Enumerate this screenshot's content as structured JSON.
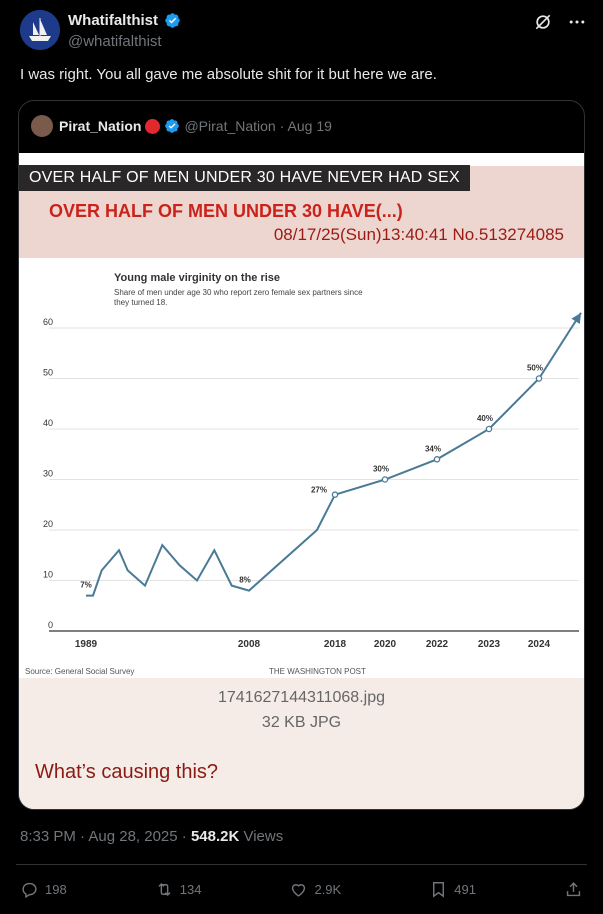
{
  "author": {
    "display_name": "Whatifalthist",
    "handle": "@whatifalthist"
  },
  "tweet_text": "I was right. You all gave me absolute shit for it but here we are.",
  "quote": {
    "display_name": "Pirat_Nation",
    "handle": "@Pirat_Nation",
    "date": "· Aug 19",
    "image": {
      "overlay_banner": "OVER HALF OF MEN UNDER 30 HAVE NEVER HAD SEX",
      "red_title": "OVER HALF OF MEN UNDER 30 HAVE(...)",
      "datetime": "08/17/25(Sun)13:40:41 No.513274085",
      "filename": "1741627144311068.jpg",
      "filesize": "32 KB JPG",
      "caption": "What’s causing this?"
    }
  },
  "chart_data": {
    "type": "line",
    "title": "Young male virginity on the rise",
    "subtitle": "Share of men under age 30 who report zero female sex partners since they turned 18.",
    "source": "Source: General Social Survey",
    "credit": "THE WASHINGTON POST",
    "ylim": [
      0,
      60
    ],
    "yticks": [
      0,
      10,
      20,
      30,
      40,
      50,
      60
    ],
    "xtick_labels": [
      "1989",
      "2008",
      "2018",
      "2020",
      "2022",
      "2023",
      "2024"
    ],
    "series": [
      {
        "points": [
          {
            "x": 1989,
            "y": 7
          },
          {
            "x": 1990,
            "y": 7
          },
          {
            "x": 1991,
            "y": 12
          },
          {
            "x": 1993,
            "y": 16
          },
          {
            "x": 1994,
            "y": 12
          },
          {
            "x": 1996,
            "y": 9
          },
          {
            "x": 1998,
            "y": 17
          },
          {
            "x": 2000,
            "y": 13
          },
          {
            "x": 2002,
            "y": 10
          },
          {
            "x": 2004,
            "y": 16
          },
          {
            "x": 2006,
            "y": 9
          },
          {
            "x": 2008,
            "y": 8
          },
          {
            "x": 2016,
            "y": 20
          },
          {
            "x": 2018,
            "y": 27
          },
          {
            "x": 2020,
            "y": 30
          },
          {
            "x": 2022,
            "y": 34
          },
          {
            "x": 2023,
            "y": 40
          },
          {
            "x": 2024,
            "y": 50
          },
          {
            "x": 2025,
            "y": 63
          }
        ]
      }
    ],
    "data_labels": [
      {
        "x": 1989,
        "y": 7,
        "text": "7%"
      },
      {
        "x": 2008,
        "y": 8,
        "text": "8%"
      },
      {
        "x": 2018,
        "y": 27,
        "text": "27%"
      },
      {
        "x": 2020,
        "y": 30,
        "text": "30%"
      },
      {
        "x": 2022,
        "y": 34,
        "text": "34%"
      },
      {
        "x": 2023,
        "y": 40,
        "text": "40%"
      },
      {
        "x": 2024,
        "y": 50,
        "text": "50%"
      }
    ],
    "line_color": "#4a7a96"
  },
  "meta": {
    "time": "8:33 PM · Aug 28, 2025 · ",
    "views_count": "548.2K",
    "views_label": " Views"
  },
  "actions": {
    "replies": "198",
    "reposts": "134",
    "likes": "2.9K",
    "bookmarks": "491"
  },
  "colors": {
    "background": "#000000",
    "verified": "#1d9bf0",
    "muted": "#71767b"
  }
}
